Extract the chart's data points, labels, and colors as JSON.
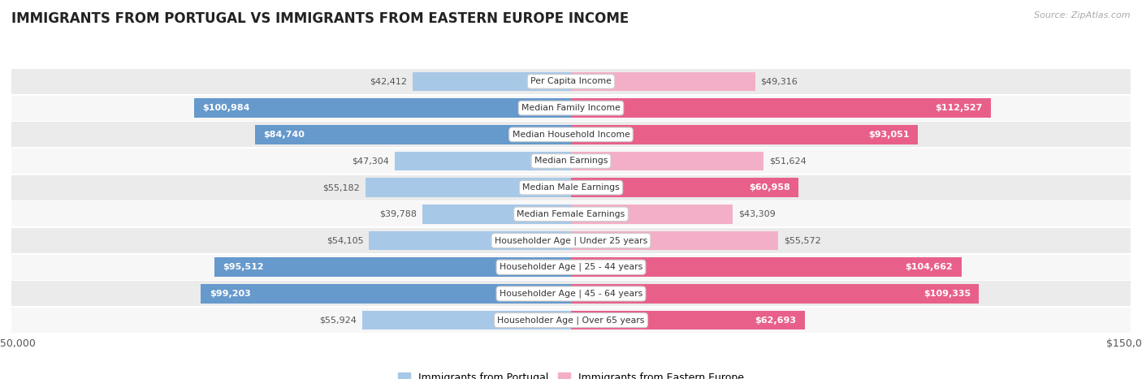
{
  "title": "IMMIGRANTS FROM PORTUGAL VS IMMIGRANTS FROM EASTERN EUROPE INCOME",
  "source": "Source: ZipAtlas.com",
  "categories": [
    "Per Capita Income",
    "Median Family Income",
    "Median Household Income",
    "Median Earnings",
    "Median Male Earnings",
    "Median Female Earnings",
    "Householder Age | Under 25 years",
    "Householder Age | 25 - 44 years",
    "Householder Age | 45 - 64 years",
    "Householder Age | Over 65 years"
  ],
  "portugal_values": [
    42412,
    100984,
    84740,
    47304,
    55182,
    39788,
    54105,
    95512,
    99203,
    55924
  ],
  "eastern_europe_values": [
    49316,
    112527,
    93051,
    51624,
    60958,
    43309,
    55572,
    104662,
    109335,
    62693
  ],
  "portugal_labels": [
    "$42,412",
    "$100,984",
    "$84,740",
    "$47,304",
    "$55,182",
    "$39,788",
    "$54,105",
    "$95,512",
    "$99,203",
    "$55,924"
  ],
  "eastern_europe_labels": [
    "$49,316",
    "$112,527",
    "$93,051",
    "$51,624",
    "$60,958",
    "$43,309",
    "$55,572",
    "$104,662",
    "$109,335",
    "$62,693"
  ],
  "portugal_color_light": "#a8c8e8",
  "portugal_color_dark": "#6699cc",
  "eastern_europe_color_light": "#f4afc8",
  "eastern_europe_color_dark": "#e8608a",
  "bar_height": 0.72,
  "xlim": 150000,
  "background_color": "#ffffff",
  "row_bg_even": "#ebebeb",
  "row_bg_odd": "#f7f7f7",
  "row_border": "#ffffff",
  "legend_portugal": "Immigrants from Portugal",
  "legend_eastern": "Immigrants from Eastern Europe",
  "inside_label_threshold": 60000,
  "label_fontsize": 8.0,
  "category_fontsize": 7.8,
  "title_fontsize": 12,
  "source_fontsize": 8
}
